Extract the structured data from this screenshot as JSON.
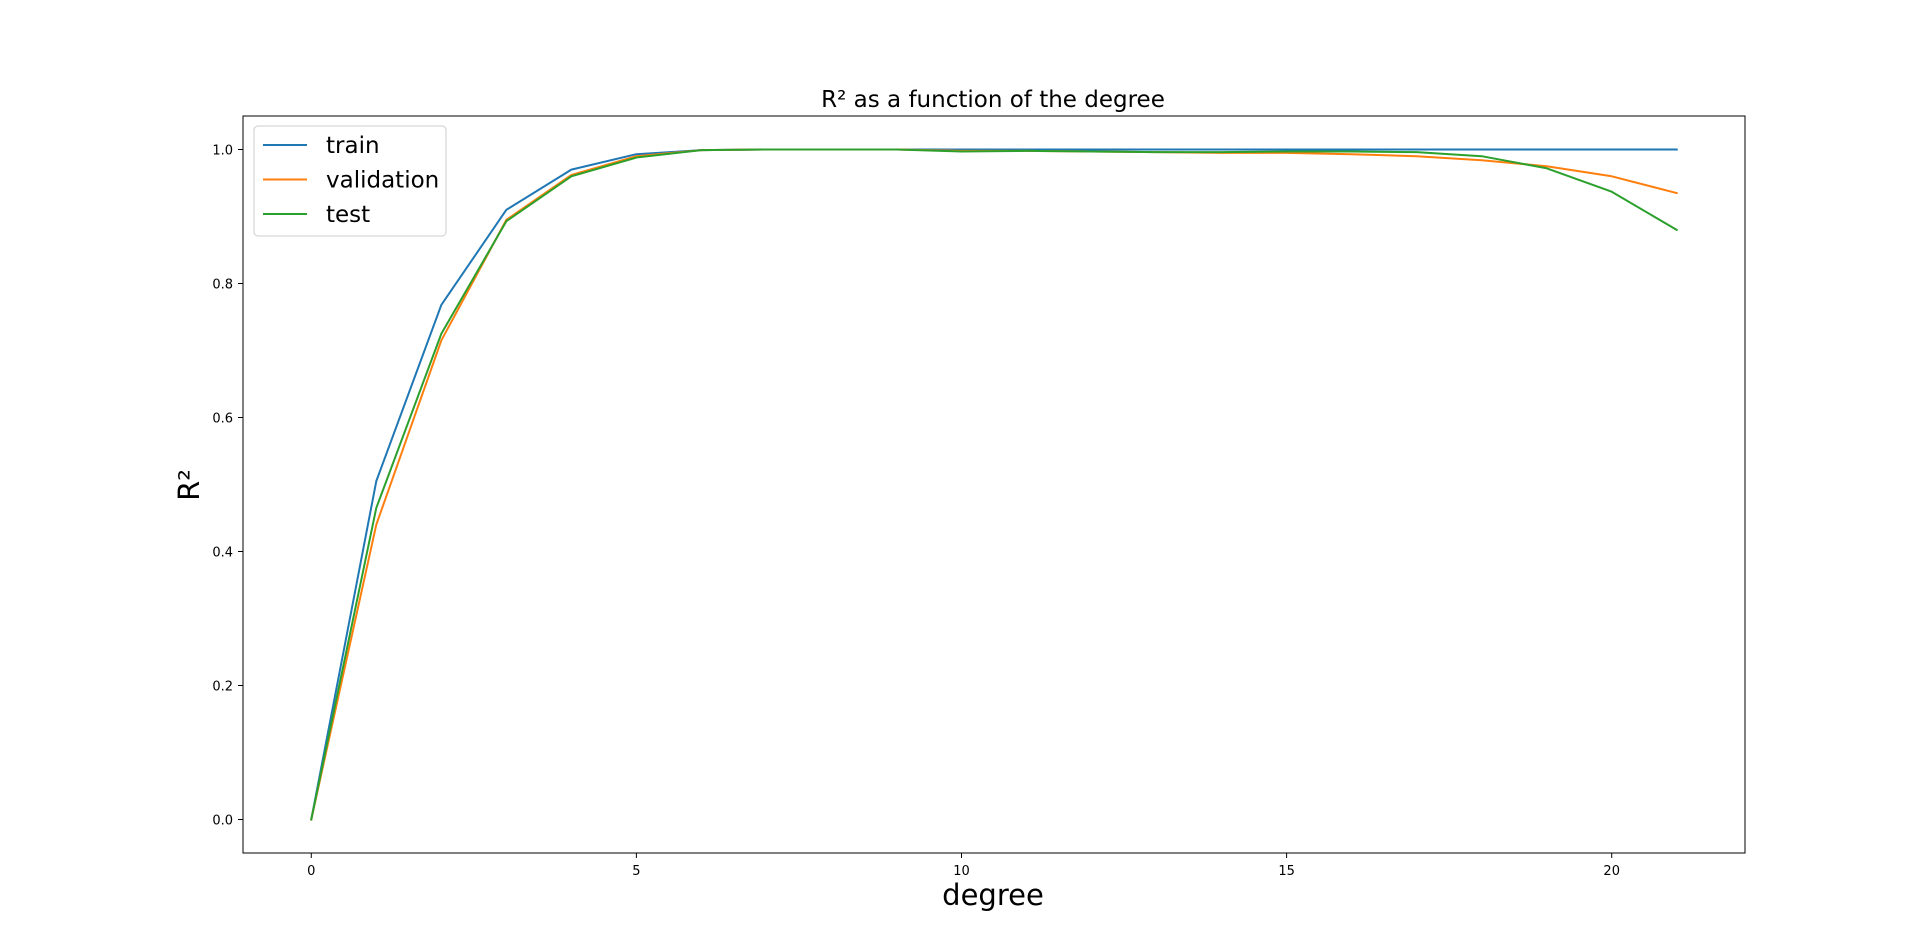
{
  "chart_data": {
    "type": "line",
    "title": "R² as a function of the degree",
    "xlabel": "degree",
    "ylabel": "R²",
    "xlim": [
      -1.05,
      22.05
    ],
    "ylim": [
      -0.05,
      1.05
    ],
    "xticks": [
      0,
      5,
      10,
      15,
      20
    ],
    "xtick_labels": [
      "0",
      "5",
      "10",
      "15",
      "20"
    ],
    "yticks": [
      0.0,
      0.2,
      0.4,
      0.6,
      0.8,
      1.0
    ],
    "ytick_labels": [
      "0.0",
      "0.2",
      "0.4",
      "0.6",
      "0.8",
      "1.0"
    ],
    "grid": false,
    "legend_position": "top-left",
    "x": [
      0,
      1,
      2,
      3,
      4,
      5,
      6,
      7,
      8,
      9,
      10,
      11,
      12,
      13,
      14,
      15,
      16,
      17,
      18,
      19,
      20,
      21
    ],
    "series": [
      {
        "name": "train",
        "color": "#1f77b4",
        "values": [
          0.0,
          0.505,
          0.768,
          0.91,
          0.97,
          0.993,
          0.999,
          1.0,
          1.0,
          1.0,
          1.0,
          1.0,
          1.0,
          1.0,
          1.0,
          1.0,
          1.0,
          1.0,
          1.0,
          1.0,
          1.0,
          1.0
        ]
      },
      {
        "name": "validation",
        "color": "#ff7f0e",
        "values": [
          0.0,
          0.44,
          0.715,
          0.895,
          0.962,
          0.99,
          0.999,
          1.0,
          1.0,
          1.0,
          0.998,
          0.998,
          0.997,
          0.996,
          0.995,
          0.995,
          0.993,
          0.99,
          0.984,
          0.975,
          0.96,
          0.935
        ]
      },
      {
        "name": "test",
        "color": "#2ca02c",
        "values": [
          0.0,
          0.465,
          0.725,
          0.893,
          0.96,
          0.988,
          0.999,
          1.0,
          1.0,
          1.0,
          0.997,
          0.998,
          0.997,
          0.996,
          0.996,
          0.997,
          0.997,
          0.996,
          0.99,
          0.972,
          0.937,
          0.88
        ]
      }
    ]
  }
}
